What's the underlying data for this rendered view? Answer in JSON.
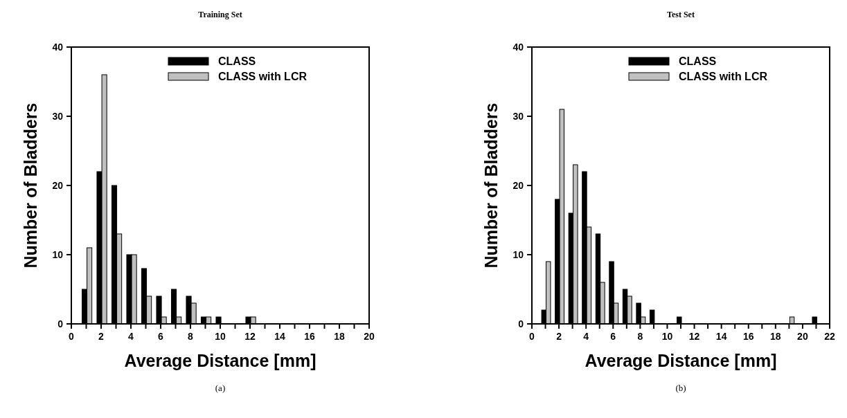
{
  "chart_data": [
    {
      "type": "bar",
      "title": "Training Set",
      "xlabel": "Average Distance [mm]",
      "ylabel": "Number of Bladders",
      "annotations": [
        "(a)"
      ],
      "legend": "top right",
      "grid": false,
      "xlim": [
        0,
        20
      ],
      "ylim": [
        0,
        40
      ],
      "xticks": [
        0,
        {
          "value": 1,
          "label": null
        },
        2,
        {
          "value": 3,
          "label": null
        },
        4,
        {
          "value": 5,
          "label": null
        },
        6,
        {
          "value": 7,
          "label": null
        },
        8,
        {
          "value": 9,
          "label": null
        },
        10,
        {
          "value": 11,
          "label": null
        },
        12,
        {
          "value": 13,
          "label": null
        },
        14,
        {
          "value": 15,
          "label": null
        },
        16,
        {
          "value": 17,
          "label": null
        },
        18,
        {
          "value": 19,
          "label": null
        },
        20
      ],
      "yticks": [
        0,
        10,
        20,
        30,
        40
      ],
      "x": [
        1,
        2,
        3,
        4,
        5,
        6,
        7,
        8,
        9,
        10,
        11,
        12
      ],
      "series": [
        {
          "name": "CLASS",
          "color": "#000000",
          "values": [
            5,
            22,
            20,
            10,
            8,
            4,
            5,
            4,
            1,
            1,
            0,
            1
          ]
        },
        {
          "name": "CLASS with LCR",
          "color": "#c0c0c0",
          "values": [
            11,
            36,
            13,
            10,
            4,
            1,
            1,
            3,
            1,
            0,
            0,
            1
          ]
        }
      ]
    },
    {
      "type": "bar",
      "title": "Test Set",
      "xlabel": "Average Distance [mm]",
      "ylabel": "Number of Bladders",
      "annotations": [
        "(b)"
      ],
      "legend": "top right",
      "grid": false,
      "xlim": [
        0,
        22
      ],
      "ylim": [
        0,
        40
      ],
      "xticks": [
        0,
        {
          "value": 1,
          "label": null
        },
        2,
        {
          "value": 3,
          "label": null
        },
        4,
        {
          "value": 5,
          "label": null
        },
        6,
        {
          "value": 7,
          "label": null
        },
        8,
        {
          "value": 9,
          "label": null
        },
        10,
        {
          "value": 11,
          "label": null
        },
        12,
        {
          "value": 13,
          "label": null
        },
        14,
        {
          "value": 15,
          "label": null
        },
        16,
        {
          "value": 17,
          "label": null
        },
        18,
        {
          "value": 19,
          "label": null
        },
        20,
        {
          "value": 21,
          "label": null
        },
        22
      ],
      "yticks": [
        0,
        10,
        20,
        30,
        40
      ],
      "x": [
        1,
        2,
        3,
        4,
        5,
        6,
        7,
        8,
        9,
        10,
        11,
        12,
        13,
        14,
        15,
        16,
        17,
        18,
        19,
        20,
        21
      ],
      "series": [
        {
          "name": "CLASS",
          "color": "#000000",
          "values": [
            2,
            18,
            16,
            22,
            13,
            9,
            5,
            3,
            2,
            0,
            1,
            0,
            0,
            0,
            0,
            0,
            0,
            0,
            0,
            0,
            1
          ]
        },
        {
          "name": "CLASS with LCR",
          "color": "#c0c0c0",
          "values": [
            9,
            31,
            23,
            14,
            6,
            3,
            4,
            1,
            0,
            0,
            0,
            0,
            0,
            0,
            0,
            0,
            0,
            0,
            1,
            0,
            0
          ]
        }
      ]
    }
  ]
}
